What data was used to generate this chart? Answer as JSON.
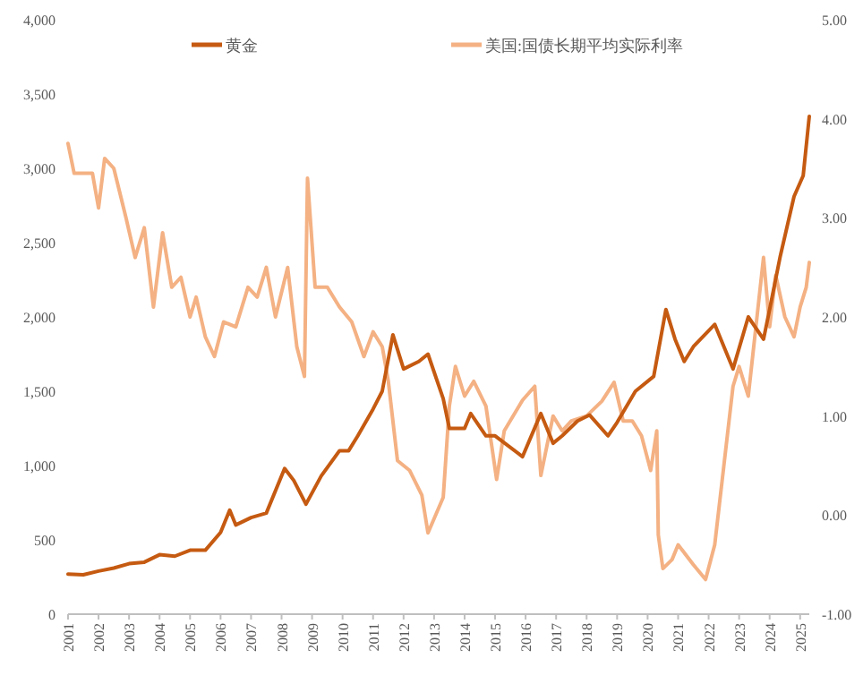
{
  "chart_data": {
    "type": "line",
    "legend": "top",
    "grid": false,
    "marker": "none",
    "line_style": "solid",
    "xlim": [
      2001,
      2025.3
    ],
    "xticks": [
      2001,
      2002,
      2003,
      2004,
      2005,
      2006,
      2007,
      2008,
      2009,
      2010,
      2011,
      2012,
      2013,
      2014,
      2015,
      2016,
      2017,
      2018,
      2019,
      2020,
      2021,
      2022,
      2023,
      2024,
      2025
    ],
    "ylim": [
      0,
      4000
    ],
    "yticks": [
      {
        "value": 0,
        "label": "0"
      },
      {
        "value": 500,
        "label": "500"
      },
      {
        "value": 1000,
        "label": "1,000"
      },
      {
        "value": 1500,
        "label": "1,500"
      },
      {
        "value": 2000,
        "label": "2,000"
      },
      {
        "value": 2500,
        "label": "2,500"
      },
      {
        "value": 3000,
        "label": "3,000"
      },
      {
        "value": 3500,
        "label": "3,500"
      },
      {
        "value": 4000,
        "label": "4,000"
      }
    ],
    "y2lim": [
      -1,
      5
    ],
    "y2ticks": [
      {
        "value": -1,
        "label": "-1.00"
      },
      {
        "value": 0,
        "label": "0.00"
      },
      {
        "value": 1,
        "label": "1.00"
      },
      {
        "value": 2,
        "label": "2.00"
      },
      {
        "value": 3,
        "label": "3.00"
      },
      {
        "value": 4,
        "label": "4.00"
      },
      {
        "value": 5,
        "label": "5.00"
      }
    ],
    "series": [
      {
        "name": "黄金",
        "color": "#c55a11",
        "x": [
          2001.0,
          2001.5,
          2002.0,
          2002.5,
          2003.0,
          2003.5,
          2004.0,
          2004.5,
          2005.0,
          2005.5,
          2006.0,
          2006.3,
          2006.5,
          2007.0,
          2007.5,
          2008.1,
          2008.4,
          2008.8,
          2009.3,
          2009.9,
          2010.2,
          2010.5,
          2011.0,
          2011.3,
          2011.65,
          2012.0,
          2012.5,
          2012.8,
          2013.3,
          2013.5,
          2014.0,
          2014.2,
          2014.7,
          2015.0,
          2015.9,
          2016.5,
          2016.9,
          2017.2,
          2017.7,
          2018.1,
          2018.7,
          2019.0,
          2019.6,
          2020.2,
          2020.6,
          2020.9,
          2021.2,
          2021.5,
          2022.2,
          2022.8,
          2023.3,
          2023.8,
          2024.0,
          2024.35,
          2024.8,
          2025.1,
          2025.3
        ],
        "values": [
          270,
          265,
          290,
          310,
          340,
          350,
          400,
          390,
          430,
          430,
          550,
          700,
          600,
          650,
          680,
          980,
          900,
          740,
          930,
          1100,
          1100,
          1200,
          1380,
          1500,
          1880,
          1650,
          1700,
          1750,
          1450,
          1250,
          1250,
          1350,
          1200,
          1200,
          1060,
          1350,
          1150,
          1200,
          1300,
          1340,
          1200,
          1290,
          1500,
          1600,
          2050,
          1850,
          1700,
          1800,
          1950,
          1650,
          2000,
          1850,
          2050,
          2410,
          2810,
          2950,
          3350
        ]
      },
      {
        "name": "美国:国债长期平均实际利率",
        "color": "#f4b183",
        "axis": "y2",
        "x": [
          2001.0,
          2001.2,
          2001.8,
          2002.0,
          2002.2,
          2002.5,
          2002.9,
          2003.2,
          2003.5,
          2003.8,
          2004.1,
          2004.4,
          2004.7,
          2005.0,
          2005.2,
          2005.5,
          2005.8,
          2006.1,
          2006.5,
          2006.9,
          2007.2,
          2007.5,
          2007.8,
          2008.2,
          2008.5,
          2008.75,
          2008.85,
          2009.1,
          2009.5,
          2009.9,
          2010.3,
          2010.7,
          2011.0,
          2011.3,
          2011.5,
          2011.8,
          2012.2,
          2012.6,
          2012.8,
          2013.3,
          2013.5,
          2013.7,
          2014.0,
          2014.3,
          2014.7,
          2015.05,
          2015.3,
          2015.9,
          2016.3,
          2016.5,
          2016.9,
          2017.2,
          2017.5,
          2018.0,
          2018.5,
          2018.9,
          2019.2,
          2019.5,
          2019.8,
          2020.1,
          2020.3,
          2020.35,
          2020.5,
          2020.8,
          2021.0,
          2021.5,
          2021.9,
          2022.2,
          2022.5,
          2022.8,
          2023.0,
          2023.3,
          2023.8,
          2024.0,
          2024.2,
          2024.5,
          2024.8,
          2025.0,
          2025.2,
          2025.3
        ],
        "values": [
          3.75,
          3.45,
          3.45,
          3.1,
          3.6,
          3.5,
          3.0,
          2.6,
          2.9,
          2.1,
          2.85,
          2.3,
          2.4,
          2.0,
          2.2,
          1.8,
          1.6,
          1.95,
          1.9,
          2.3,
          2.2,
          2.5,
          2.0,
          2.5,
          1.7,
          1.4,
          3.4,
          2.3,
          2.3,
          2.1,
          1.95,
          1.6,
          1.85,
          1.7,
          1.35,
          0.55,
          0.45,
          0.2,
          -0.18,
          0.18,
          1.1,
          1.5,
          1.2,
          1.35,
          1.1,
          0.36,
          0.85,
          1.16,
          1.3,
          0.4,
          1.0,
          0.85,
          0.95,
          1.0,
          1.15,
          1.34,
          0.95,
          0.95,
          0.8,
          0.45,
          0.85,
          -0.2,
          -0.54,
          -0.45,
          -0.3,
          -0.5,
          -0.65,
          -0.3,
          0.5,
          1.3,
          1.5,
          1.2,
          2.6,
          1.9,
          2.42,
          2.0,
          1.8,
          2.1,
          2.3,
          2.55
        ]
      }
    ]
  }
}
